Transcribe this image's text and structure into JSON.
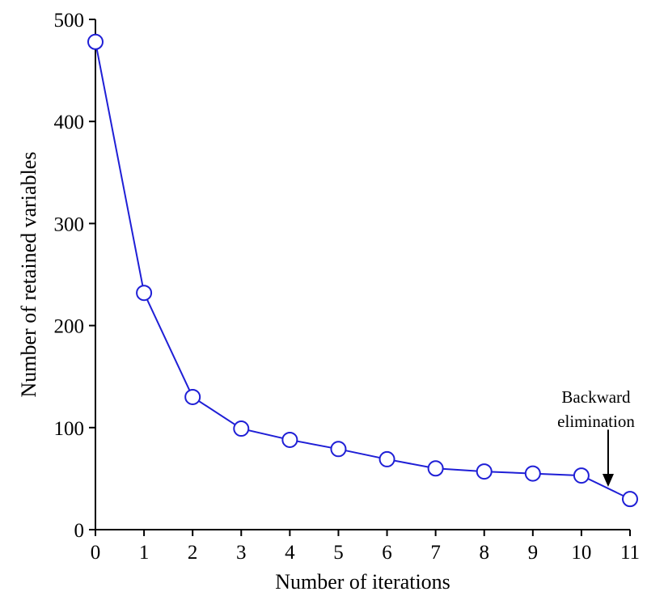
{
  "chart_data": {
    "type": "line",
    "title": "",
    "xlabel": "Number of iterations",
    "ylabel": "Number of retained variables",
    "x": [
      0,
      1,
      2,
      3,
      4,
      5,
      6,
      7,
      8,
      9,
      10,
      11
    ],
    "series": [
      {
        "values": [
          478,
          232,
          130,
          99,
          88,
          79,
          69,
          60,
          57,
          55,
          53,
          30
        ],
        "color": "#1f1fd6"
      }
    ],
    "xlim": [
      0,
      11
    ],
    "ylim": [
      0,
      500
    ],
    "xticks": [
      "0",
      "1",
      "2",
      "3",
      "4",
      "5",
      "6",
      "7",
      "8",
      "9",
      "10",
      "11"
    ],
    "yticks": [
      "0",
      "100",
      "200",
      "300",
      "400",
      "500"
    ],
    "grid": false,
    "marker": "open-circle",
    "annotation": {
      "lines": [
        "Backward",
        "elimination"
      ],
      "arrow_x": 10.55,
      "arrow_y_from": 98,
      "arrow_y_to": 42
    }
  }
}
